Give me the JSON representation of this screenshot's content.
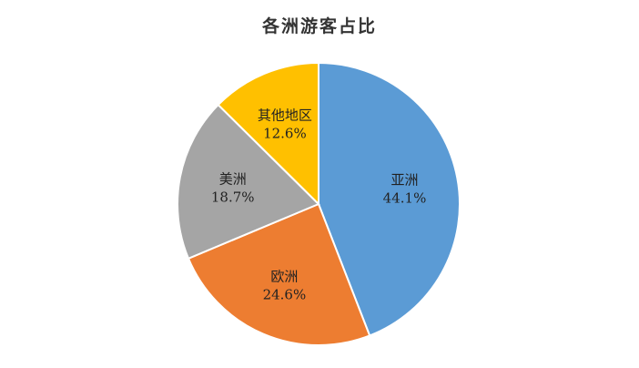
{
  "chart_data": {
    "type": "pie",
    "title": "各洲游客占比",
    "start_angle_deg": 90,
    "direction": "clockwise",
    "legend": "none",
    "slices": [
      {
        "key": "asia",
        "label": "亚洲",
        "value": 44.1,
        "value_label": "44.1%",
        "color": "#5B9BD5"
      },
      {
        "key": "europe",
        "label": "欧洲",
        "value": 24.6,
        "value_label": "24.6%",
        "color": "#ED7D31"
      },
      {
        "key": "americas",
        "label": "美洲",
        "value": 18.7,
        "value_label": "18.7%",
        "color": "#A5A5A5"
      },
      {
        "key": "other",
        "label": "其他地区",
        "value": 12.6,
        "value_label": "12.6%",
        "color": "#FFC000"
      }
    ]
  }
}
